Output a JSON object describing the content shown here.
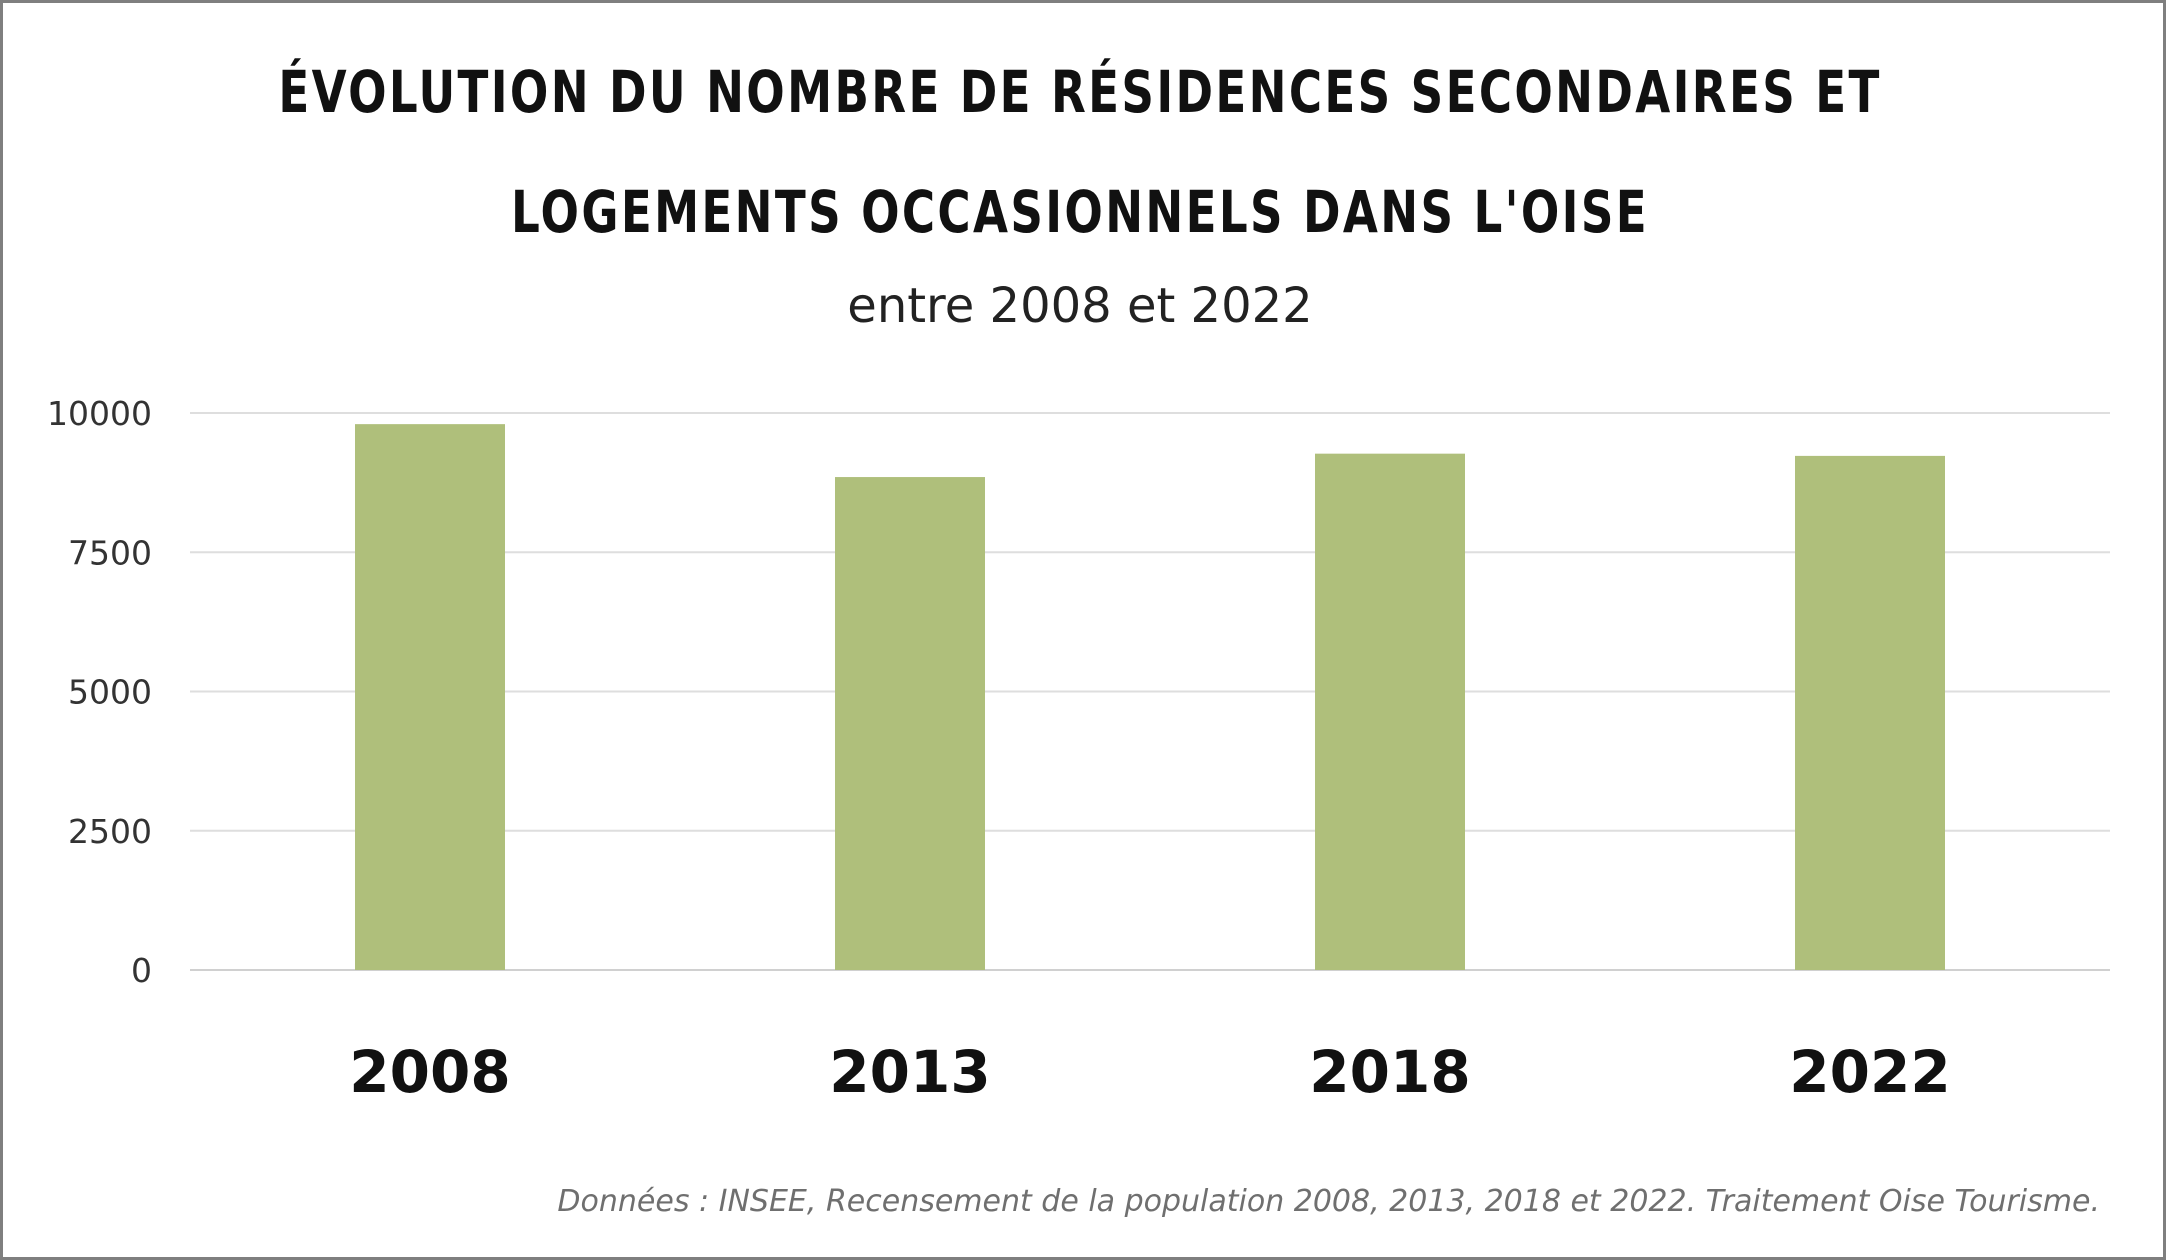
{
  "chart_data": {
    "type": "bar",
    "title_line1": "Évolution du nombre de résidences secondaires et",
    "title_line2": "logements occasionnels dans l'Oise",
    "subtitle": "entre 2008 et 2022",
    "categories": [
      "2008",
      "2013",
      "2018",
      "2022"
    ],
    "values": [
      9800,
      8850,
      9270,
      9230
    ],
    "ylim": [
      0,
      10000
    ],
    "yticks": [
      0,
      2500,
      5000,
      7500,
      10000
    ],
    "grid": true,
    "legend": "none",
    "bar_color": "#afbf7b",
    "source": "Données : INSEE, Recensement de la population 2008, 2013, 2018 et 2022. Traitement Oise Tourisme."
  }
}
